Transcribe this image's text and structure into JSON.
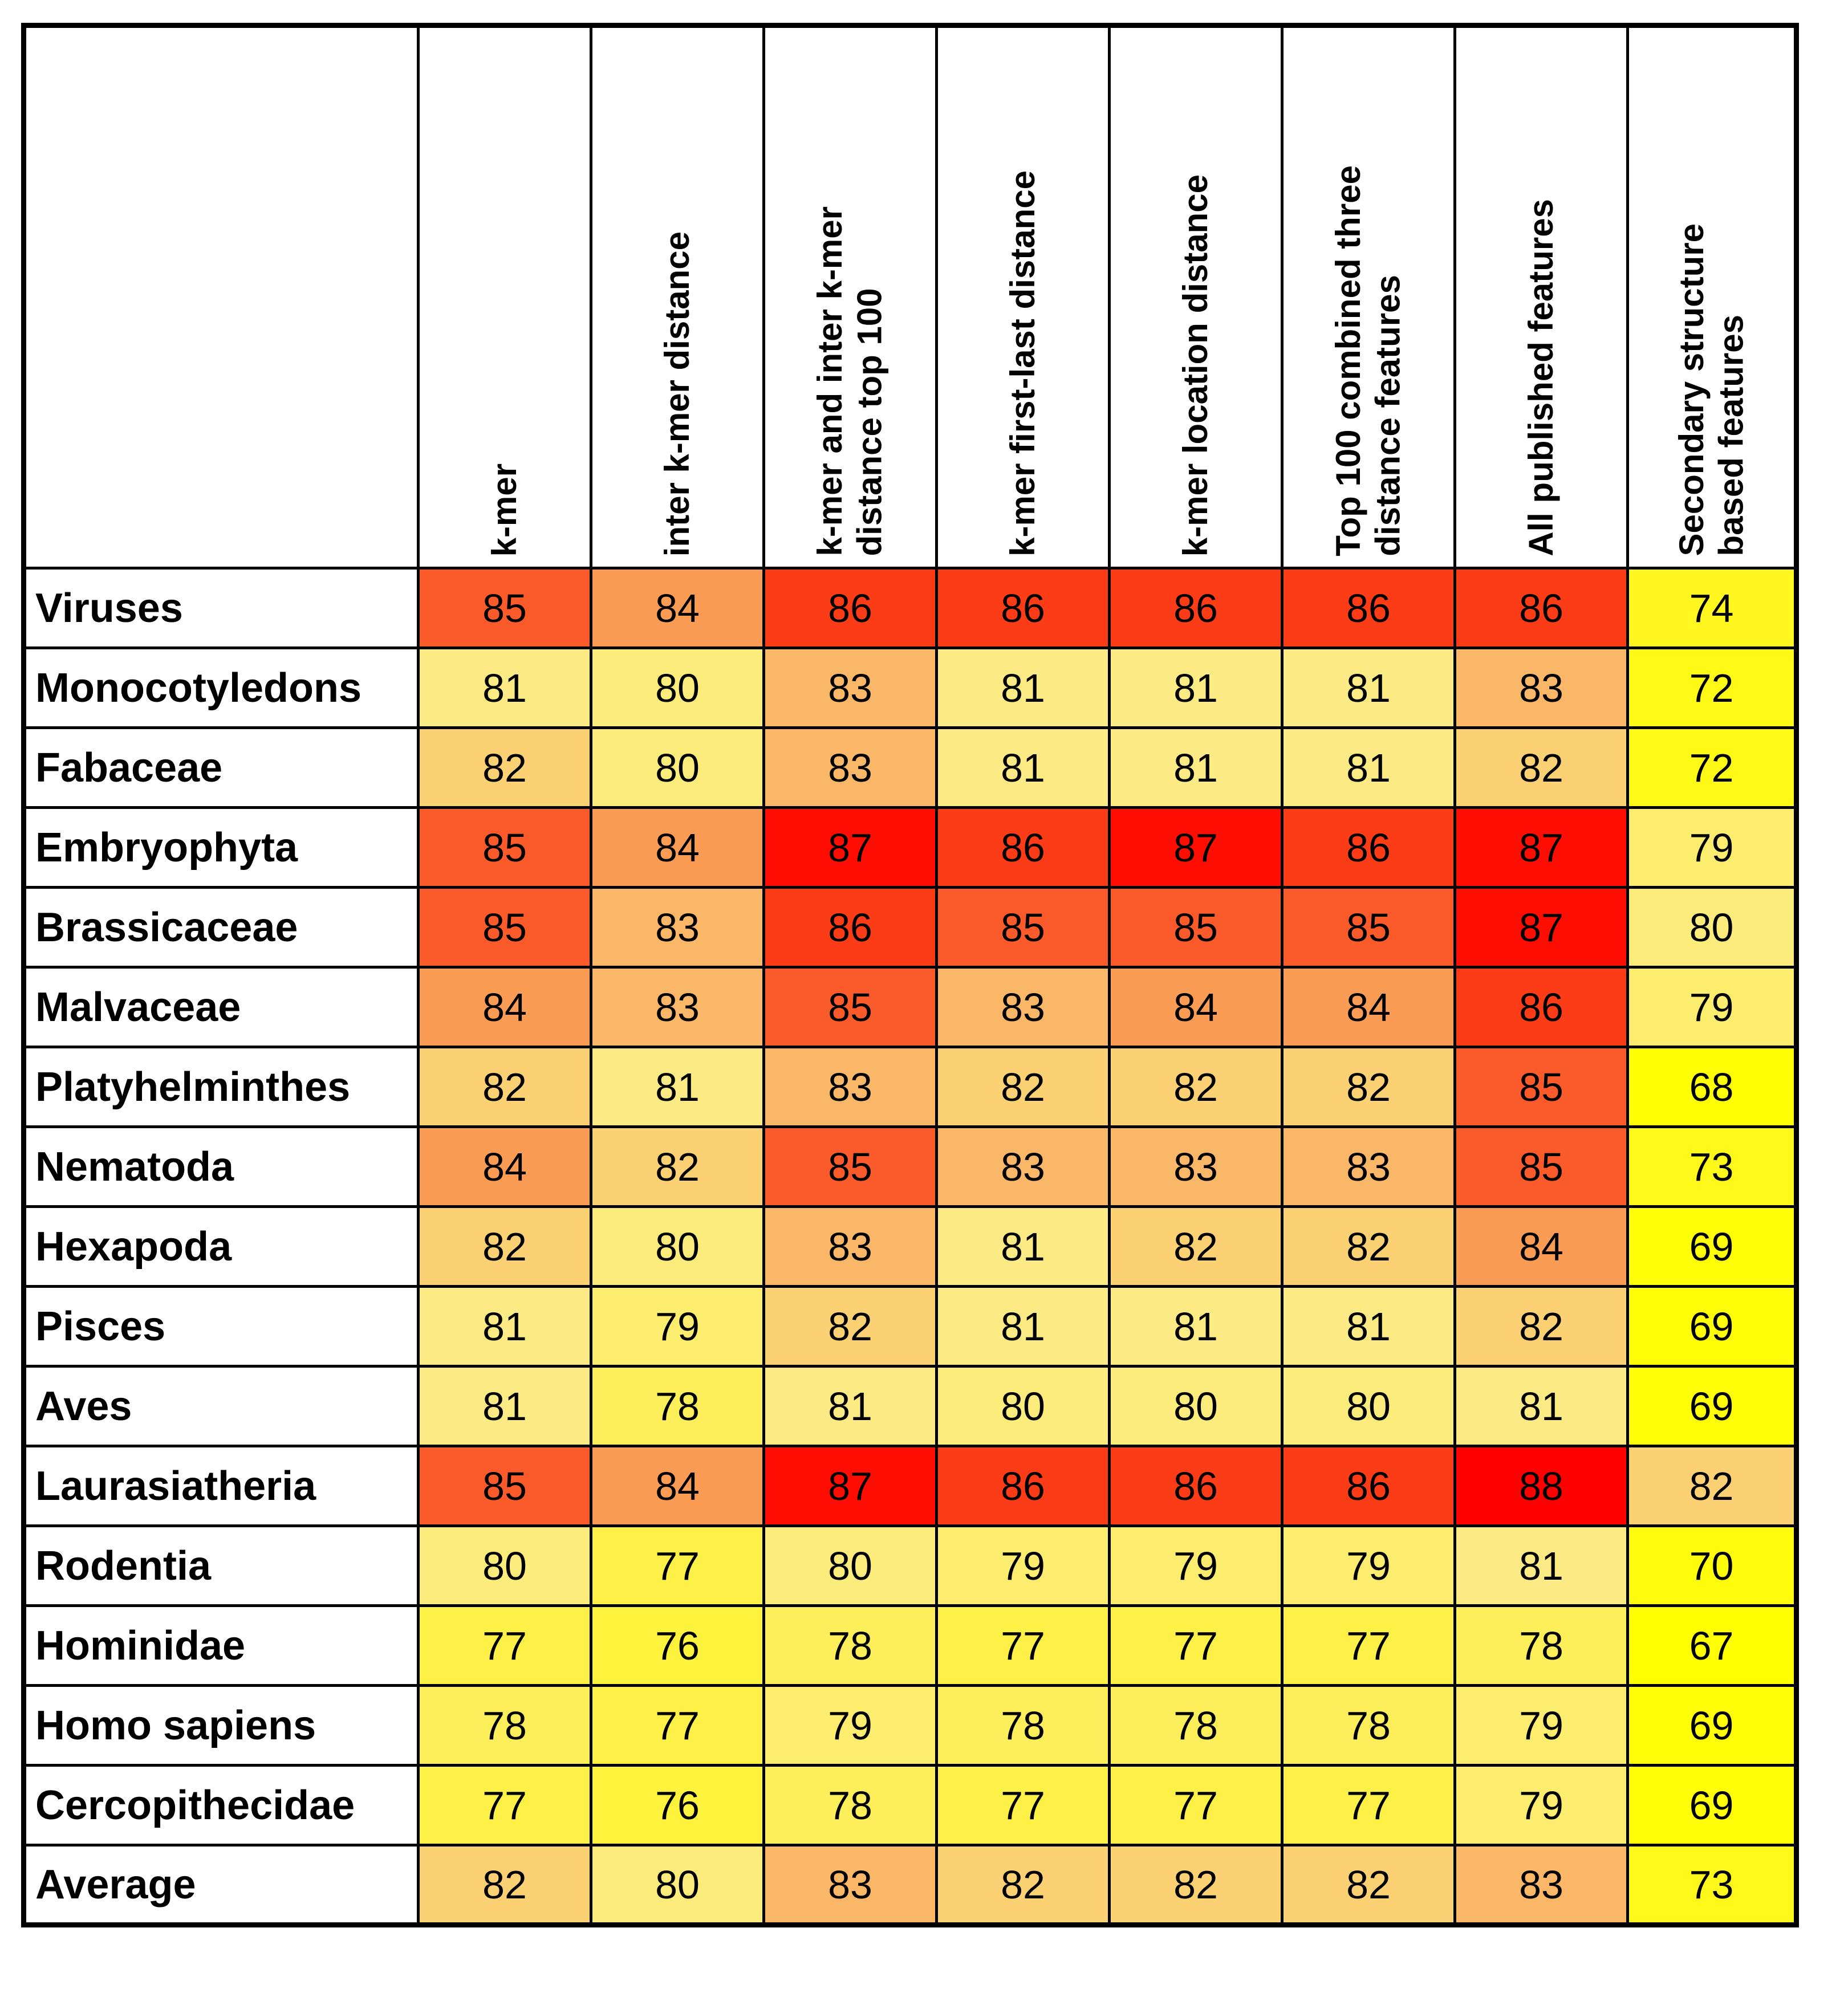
{
  "chart_data": {
    "type": "heatmap",
    "title": "",
    "row_labels": [
      "Viruses",
      "Monocotyledons",
      "Fabaceae",
      "Embryophyta",
      "Brassicaceae",
      "Malvaceae",
      "Platyhelminthes",
      "Nematoda",
      "Hexapoda",
      "Pisces",
      "Aves",
      "Laurasiatheria",
      "Rodentia",
      "Hominidae",
      "Homo sapiens",
      "Cercopithecidae",
      "Average"
    ],
    "column_labels": [
      "k-mer",
      "inter k-mer distance",
      "k-mer and inter k-mer distance top 100",
      "k-mer first-last distance",
      "k-mer location distance",
      "Top 100 combined three distance features",
      "All published features",
      "Secondary structure based features"
    ],
    "values": [
      [
        85,
        84,
        86,
        86,
        86,
        86,
        86,
        74
      ],
      [
        81,
        80,
        83,
        81,
        81,
        81,
        83,
        72
      ],
      [
        82,
        80,
        83,
        81,
        81,
        81,
        82,
        72
      ],
      [
        85,
        84,
        87,
        86,
        87,
        86,
        87,
        79
      ],
      [
        85,
        83,
        86,
        85,
        85,
        85,
        87,
        80
      ],
      [
        84,
        83,
        85,
        83,
        84,
        84,
        86,
        79
      ],
      [
        82,
        81,
        83,
        82,
        82,
        82,
        85,
        68
      ],
      [
        84,
        82,
        85,
        83,
        83,
        83,
        85,
        73
      ],
      [
        82,
        80,
        83,
        81,
        82,
        82,
        84,
        69
      ],
      [
        81,
        79,
        82,
        81,
        81,
        81,
        82,
        69
      ],
      [
        81,
        78,
        81,
        80,
        80,
        80,
        81,
        69
      ],
      [
        85,
        84,
        87,
        86,
        86,
        86,
        88,
        82
      ],
      [
        80,
        77,
        80,
        79,
        79,
        79,
        81,
        70
      ],
      [
        77,
        76,
        78,
        77,
        77,
        77,
        78,
        67
      ],
      [
        78,
        77,
        79,
        78,
        78,
        78,
        79,
        69
      ],
      [
        77,
        76,
        78,
        77,
        77,
        77,
        79,
        69
      ],
      [
        82,
        80,
        83,
        82,
        82,
        82,
        83,
        73
      ]
    ],
    "value_range": [
      67,
      88
    ],
    "colormap": "yellow-to-red",
    "legend_position": "none",
    "grid": true
  },
  "display": {
    "corner_label": "",
    "column_header_lines": [
      "k-mer",
      "inter k-mer distance",
      "k-mer and inter k-mer\ndistance top 100",
      "k-mer first-last distance",
      "k-mer location distance",
      "Top 100 combined three\ndistance features",
      "All published features",
      "Secondary structure\nbased features"
    ],
    "color_scale": {
      "low_color": "#FFFF00",
      "mid_color": "#FCEA84",
      "high_color": "#FF0000",
      "value_colors": {
        "67": "#FFFF00",
        "68": "#FFFE04",
        "69": "#FFFD08",
        "70": "#FFFB0D",
        "72": "#FFF916",
        "73": "#FFF81B",
        "74": "#FFF71F",
        "76": "#FEF33C",
        "77": "#FDF148",
        "78": "#FDEF5A",
        "79": "#FCED6E",
        "80": "#FCEC7B",
        "81": "#FCEA84",
        "82": "#FBD173",
        "83": "#FBB768",
        "84": "#FB9C55",
        "85": "#FB5B2A",
        "86": "#FB3C16",
        "87": "#FD0D02",
        "88": "#FF0000"
      }
    }
  }
}
